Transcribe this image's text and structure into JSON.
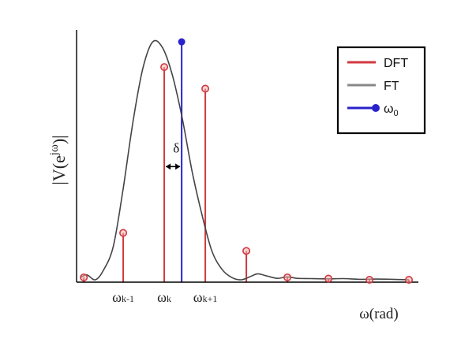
{
  "chart_data": {
    "type": "line",
    "ylabel": "|V(e",
    "ylabel_sup": "jω",
    "ylabel_end": ")|",
    "xlabel": "ω(rad)",
    "xlim": [
      0,
      10
    ],
    "ylim": [
      0,
      1
    ],
    "grid": false,
    "legend_position": "top-right",
    "colors": {
      "dft": "#d0393f",
      "ft": "#888888",
      "omega0": "#2a22cc",
      "axis": "#000000"
    },
    "legend": [
      {
        "key": "dft",
        "label": "DFT"
      },
      {
        "key": "ft",
        "label": "FT"
      },
      {
        "key": "omega0",
        "label": "ω",
        "sub": "0"
      }
    ],
    "series": [
      {
        "name": "FT",
        "x": [
          0,
          0.2,
          0.45,
          0.7,
          1.0,
          1.3,
          1.6,
          1.9,
          2.2,
          2.5,
          2.8,
          3.1,
          3.4,
          3.7,
          4.0,
          4.3,
          4.6,
          4.9,
          5.2,
          5.4,
          5.7,
          6.0,
          6.3,
          6.6,
          7.0,
          7.5,
          8.0,
          8.5,
          9.0,
          9.5,
          10
        ],
        "y": [
          0.01,
          0.02,
          0.0,
          0.04,
          0.14,
          0.38,
          0.66,
          0.88,
          0.99,
          0.965,
          0.85,
          0.67,
          0.45,
          0.27,
          0.12,
          0.045,
          0.01,
          0.0,
          0.015,
          0.025,
          0.015,
          0.006,
          0.012,
          0.006,
          0.005,
          0.004,
          0.005,
          0.002,
          0.003,
          0.002,
          0.0
        ]
      },
      {
        "name": "DFT",
        "x": [
          0.1,
          1.3,
          2.55,
          3.8,
          5.05,
          6.3,
          7.55,
          8.8,
          10.0
        ],
        "y": [
          0.01,
          0.195,
          0.885,
          0.795,
          0.12,
          0.01,
          0.005,
          0.0,
          0.0
        ]
      },
      {
        "name": "ω0",
        "x": [
          3.08
        ],
        "y": [
          0.99
        ]
      }
    ],
    "annotations": [
      {
        "text": "δ",
        "x": 2.82,
        "y": 0.53
      }
    ],
    "xtick_labels": [
      {
        "base": "ω",
        "sub": "k-1",
        "x": 1.3
      },
      {
        "base": "ω",
        "sub": "k",
        "x": 2.55
      },
      {
        "base": "ω",
        "sub": "k+1",
        "x": 3.8
      }
    ]
  }
}
